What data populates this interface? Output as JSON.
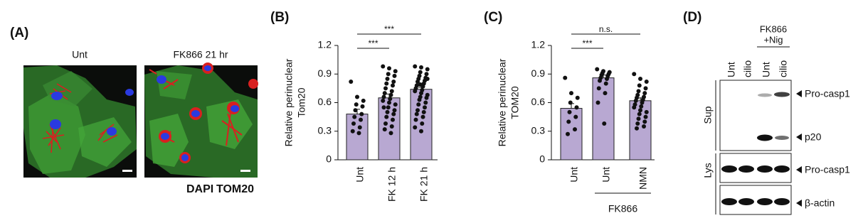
{
  "panel_a": {
    "label": "(A)",
    "images": [
      "Unt",
      "FK866 21 hr"
    ],
    "stains": [
      {
        "text": "DAPI",
        "color": "#1f1fe0"
      },
      {
        "text": "TOM20",
        "color": "#e02020"
      }
    ]
  },
  "chart_data": [
    {
      "type": "bar",
      "panel_label": "(B)",
      "ylabel": [
        "Relative perinuclear",
        "Tom20"
      ],
      "categories": [
        "Unt",
        "FK 12 h",
        "FK 21 h"
      ],
      "values": [
        0.48,
        0.65,
        0.74
      ],
      "errors": [
        0.05,
        0.04,
        0.02
      ],
      "points": [
        [
          0.82,
          0.66,
          0.62,
          0.58,
          0.56,
          0.52,
          0.48,
          0.45,
          0.42,
          0.38,
          0.34,
          0.3,
          0.28
        ],
        [
          0.98,
          0.96,
          0.93,
          0.9,
          0.88,
          0.85,
          0.82,
          0.8,
          0.78,
          0.75,
          0.72,
          0.7,
          0.68,
          0.66,
          0.64,
          0.62,
          0.6,
          0.58,
          0.55,
          0.52,
          0.5,
          0.48,
          0.45,
          0.42,
          0.38,
          0.35,
          0.32,
          0.28,
          0.55
        ],
        [
          0.98,
          0.97,
          0.95,
          0.92,
          0.9,
          0.88,
          0.86,
          0.85,
          0.83,
          0.82,
          0.8,
          0.78,
          0.77,
          0.75,
          0.73,
          0.72,
          0.7,
          0.68,
          0.66,
          0.65,
          0.63,
          0.6,
          0.58,
          0.55,
          0.52,
          0.5,
          0.48,
          0.45,
          0.42,
          0.38,
          0.34,
          0.3,
          0.85,
          0.79
        ]
      ],
      "color": "#b8a8d2",
      "ylim": [
        0,
        1.2
      ],
      "yticks": [
        0,
        0.3,
        0.6,
        0.9,
        1.2
      ],
      "annotations": [
        {
          "from": 0,
          "to": 1,
          "text": "***"
        },
        {
          "from": 0,
          "to": 2,
          "text": "***"
        }
      ]
    },
    {
      "type": "bar",
      "panel_label": "(C)",
      "ylabel": [
        "Relative perinuclear",
        "TOM20"
      ],
      "categories": [
        "Unt",
        "Unt",
        "NMN"
      ],
      "values": [
        0.54,
        0.86,
        0.62
      ],
      "errors": [
        0.05,
        0.03,
        0.03
      ],
      "points": [
        [
          0.86,
          0.7,
          0.65,
          0.6,
          0.55,
          0.5,
          0.45,
          0.4,
          0.32,
          0.27
        ],
        [
          0.95,
          0.93,
          0.92,
          0.91,
          0.9,
          0.89,
          0.88,
          0.86,
          0.85,
          0.83,
          0.8,
          0.75,
          0.7,
          0.6,
          0.38
        ],
        [
          0.9,
          0.85,
          0.82,
          0.78,
          0.75,
          0.72,
          0.7,
          0.68,
          0.66,
          0.65,
          0.63,
          0.62,
          0.6,
          0.58,
          0.56,
          0.55,
          0.52,
          0.5,
          0.48,
          0.45,
          0.43,
          0.4,
          0.38,
          0.35,
          0.33
        ]
      ],
      "color": "#b8a8d2",
      "ylim": [
        0,
        1.2
      ],
      "yticks": [
        0,
        0.3,
        0.6,
        0.9,
        1.2
      ],
      "annotations": [
        {
          "from": 0,
          "to": 1,
          "text": "***"
        },
        {
          "from": 0,
          "to": 2,
          "text": "n.s."
        }
      ],
      "group_label": {
        "text": "FK866",
        "categories": [
          1,
          2
        ]
      }
    }
  ],
  "panel_d": {
    "label": "(D)",
    "treatment": [
      "FK866",
      "+Nig"
    ],
    "lanes": [
      "Unt",
      "cilio",
      "Unt",
      "cilio"
    ],
    "groups": [
      "Sup",
      "Lys"
    ],
    "markers": [
      "Pro-casp1",
      "p20",
      "Pro-casp1",
      "β-actin"
    ]
  }
}
